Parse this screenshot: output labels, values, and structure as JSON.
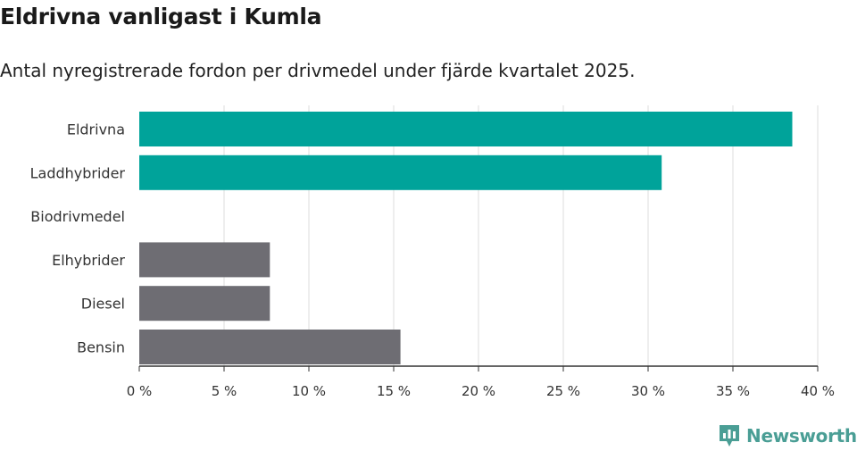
{
  "title": "Eldrivna vanligast i Kumla",
  "subtitle": "Antal nyregistrerade fordon per drivmedel under fjärde kvartalet 2025.",
  "brand": {
    "name": "Newsworthy",
    "color": "#4a9e95"
  },
  "chart_data": {
    "type": "bar",
    "orientation": "horizontal",
    "categories": [
      "Eldrivna",
      "Laddhybrider",
      "Biodrivmedel",
      "Elhybrider",
      "Diesel",
      "Bensin"
    ],
    "values": [
      38.5,
      30.8,
      0,
      7.7,
      7.7,
      15.4
    ],
    "colors": [
      "#00a39a",
      "#00a39a",
      "#00a39a",
      "#6e6d73",
      "#6e6d73",
      "#6e6d73"
    ],
    "xlim": [
      0,
      40
    ],
    "xticks": [
      0,
      5,
      10,
      15,
      20,
      25,
      30,
      35,
      40
    ],
    "tick_suffix": " %",
    "grid": true,
    "xlabel": "",
    "ylabel": ""
  }
}
